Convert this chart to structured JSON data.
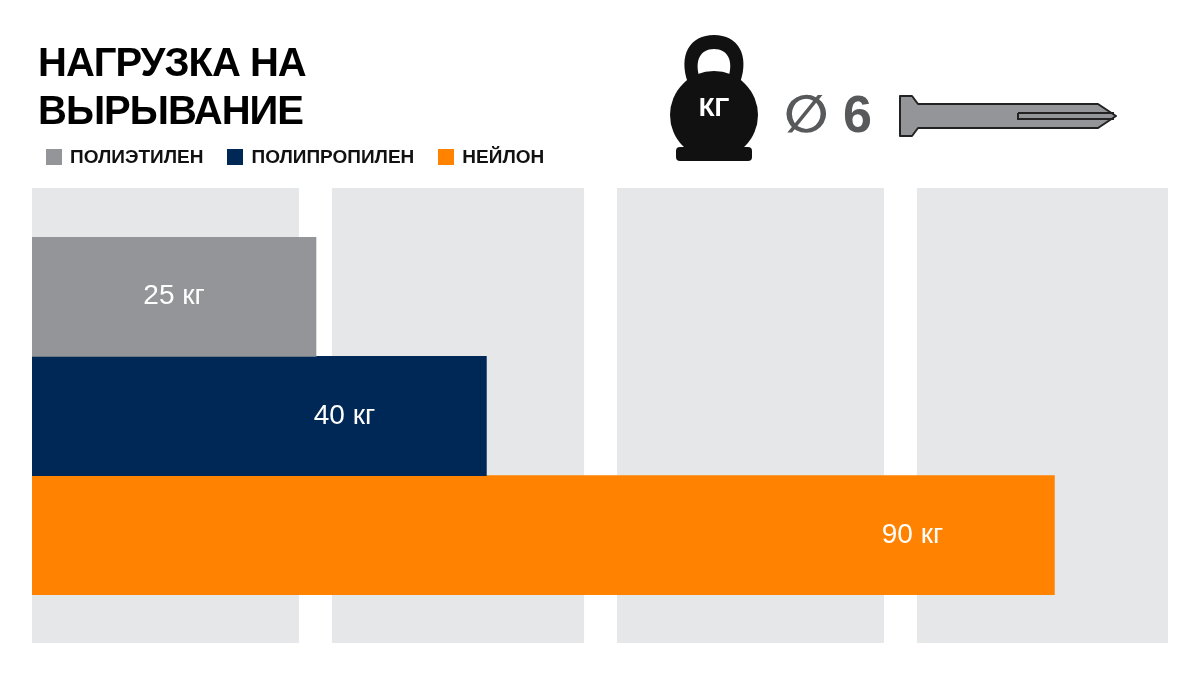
{
  "chart_data": {
    "type": "bar",
    "orientation": "horizontal",
    "title": "НАГРУЗКА НА ВЫРЫВАНИЕ",
    "categories": [
      null,
      null,
      null
    ],
    "relative": false,
    "xlim": [
      0,
      100
    ],
    "tick_labels": false,
    "stacked": true,
    "bands": [
      {
        "axis": "x",
        "from": 0,
        "to": 23.5,
        "color": "#e6e7e9"
      },
      {
        "axis": "x",
        "from": 26.4,
        "to": 48.6,
        "color": "#e6e7e9"
      },
      {
        "axis": "x",
        "from": 51.5,
        "to": 75,
        "color": "#e6e7e9"
      },
      {
        "axis": "x",
        "from": 77.9,
        "to": 100,
        "color": "#e6e7e9"
      }
    ],
    "legend": "top left",
    "annotations": [
      "КГ",
      "∅ 6"
    ],
    "series": [
      {
        "name": "ПОЛИЭТИЛЕН",
        "color": "#939598",
        "values": [
          25,
          null,
          null
        ],
        "value_labels": [
          "25 кг",
          null,
          null
        ]
      },
      {
        "name": "ПОЛИПРОПИЛЕН",
        "color": "#002857",
        "values": [
          null,
          40,
          null
        ],
        "value_labels": [
          null,
          "40 кг",
          null
        ]
      },
      {
        "name": "НЕЙЛОН",
        "color": "#ff8200",
        "values": [
          null,
          null,
          90
        ],
        "value_labels": [
          null,
          null,
          "90 кг"
        ]
      }
    ]
  }
}
